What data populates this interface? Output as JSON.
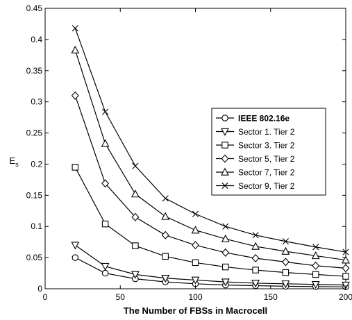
{
  "chart_data": {
    "type": "line",
    "xlabel": "The Number of FBSs in Macrocell",
    "ylabel": "E",
    "ylabel_subscript": "s",
    "xlim": [
      0,
      200
    ],
    "ylim": [
      0,
      0.45
    ],
    "xticks": [
      0,
      50,
      100,
      150,
      200
    ],
    "xtick_labels": [
      "0",
      "50",
      "100",
      "150",
      "200"
    ],
    "yticks": [
      0,
      0.05,
      0.1,
      0.15,
      0.2,
      0.25,
      0.3,
      0.35,
      0.4,
      0.45
    ],
    "ytick_labels": [
      "0",
      "0.05",
      "0.1",
      "0.15",
      "0.2",
      "0.25",
      "0.3",
      "0.35",
      "0.4",
      "0.45"
    ],
    "grid": false,
    "legend_position": "right",
    "x": [
      20,
      40,
      60,
      80,
      100,
      120,
      140,
      160,
      180,
      200
    ],
    "series": [
      {
        "name": "IEEE 802.16e",
        "marker": "circle",
        "values": [
          0.05,
          0.025,
          0.016,
          0.011,
          0.008,
          0.006,
          0.005,
          0.004,
          0.0035,
          0.003
        ]
      },
      {
        "name": "Sector 1. Tier 2",
        "marker": "triangle-down",
        "values": [
          0.07,
          0.036,
          0.023,
          0.017,
          0.014,
          0.011,
          0.009,
          0.008,
          0.007,
          0.006
        ]
      },
      {
        "name": "Sector 3. Tier 2",
        "marker": "square",
        "values": [
          0.195,
          0.104,
          0.069,
          0.052,
          0.042,
          0.035,
          0.03,
          0.026,
          0.023,
          0.02
        ]
      },
      {
        "name": "Sector 5, Tier 2",
        "marker": "diamond",
        "values": [
          0.31,
          0.169,
          0.115,
          0.086,
          0.07,
          0.058,
          0.049,
          0.043,
          0.037,
          0.033
        ]
      },
      {
        "name": "Sector 7, Tier 2",
        "marker": "triangle-up",
        "values": [
          0.383,
          0.233,
          0.152,
          0.116,
          0.094,
          0.08,
          0.068,
          0.06,
          0.053,
          0.046
        ]
      },
      {
        "name": "Sector 9, Tier 2",
        "marker": "x",
        "values": [
          0.418,
          0.284,
          0.197,
          0.145,
          0.12,
          0.1,
          0.086,
          0.076,
          0.067,
          0.059
        ]
      }
    ]
  }
}
